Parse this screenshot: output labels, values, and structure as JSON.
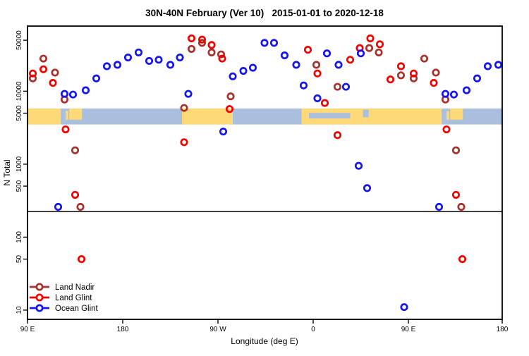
{
  "title": "30N-40N February (Ver 10)   2015-01-01 to 2020-12-18",
  "chart_data": {
    "type": "scatter",
    "title": "30N-40N February (Ver 10)   2015-01-01 to 2020-12-18",
    "xlabel": "Longitude (deg E)",
    "ylabel": "N Total",
    "grid": false,
    "legend_position": "bottom-left",
    "x_axis": {
      "start_deg_east": 90,
      "span_deg": 450,
      "wraps_past_180": true,
      "ticks": [
        {
          "deg": 90,
          "label": "90 E"
        },
        {
          "deg": 180,
          "label": "180"
        },
        {
          "deg": 270,
          "label": "90 W"
        },
        {
          "deg": 360,
          "label": "0"
        },
        {
          "deg": 450,
          "label": "90 E"
        },
        {
          "deg": 540,
          "label": "180"
        }
      ]
    },
    "y_axis": {
      "scale": "log",
      "min": 10,
      "max": 60000,
      "ticks": [
        50000,
        10000,
        5000,
        1000,
        500,
        100,
        50,
        10
      ],
      "tick_labels": [
        "50000",
        "10000",
        "5000",
        "1000",
        "500",
        "100",
        "50",
        "10"
      ],
      "label_rotation_deg": -90
    },
    "threshold_line_n": 225,
    "map_strip": {
      "description": "coastline band 30N-40N drawn across plot",
      "n_range": [
        3500,
        5800
      ],
      "sea_color": "#A9BFDD",
      "land_color": "#FED977",
      "land_segments": [
        {
          "from": 90,
          "to": 121.5,
          "top": 0,
          "bottom": 1
        },
        {
          "from": 126,
          "to": 128.5,
          "top": 0.15,
          "bottom": 0.7
        },
        {
          "from": 129.5,
          "to": 141.5,
          "top": 0,
          "bottom": 0.7
        },
        {
          "from": 236,
          "to": 284,
          "top": 0,
          "bottom": 1
        },
        {
          "from": 349,
          "to": 481.5,
          "top": 0,
          "bottom": 1
        },
        {
          "from": 486,
          "to": 488.5,
          "top": 0.15,
          "bottom": 0.7
        },
        {
          "from": 489.5,
          "to": 501.5,
          "top": 0,
          "bottom": 0.7
        }
      ],
      "sea_overlays": [
        {
          "from": 356,
          "to": 395,
          "top": 0.28,
          "bottom": 0.62
        },
        {
          "from": 407,
          "to": 412.5,
          "top": 0.08,
          "bottom": 0.55
        }
      ]
    },
    "series": [
      {
        "name": "Land Nadir",
        "color": "#A5322D",
        "points": [
          [
            95,
            15000
          ],
          [
            105,
            28000
          ],
          [
            116,
            18000
          ],
          [
            125,
            7700
          ],
          [
            135,
            1550
          ],
          [
            140,
            260
          ],
          [
            238,
            5900
          ],
          [
            245,
            38000
          ],
          [
            255,
            46000
          ],
          [
            264,
            34000
          ],
          [
            273,
            32000
          ],
          [
            282,
            8500
          ],
          [
            363,
            23000
          ],
          [
            383,
            11500
          ],
          [
            413,
            39000
          ],
          [
            422,
            34000
          ],
          [
            443,
            16500
          ],
          [
            455,
            15000
          ],
          [
            465,
            28000
          ],
          [
            476,
            18000
          ],
          [
            485,
            7700
          ],
          [
            495,
            1550
          ],
          [
            500,
            260
          ]
        ]
      },
      {
        "name": "Land Glint",
        "color": "#F50000",
        "points": [
          [
            95,
            17500
          ],
          [
            105,
            20000
          ],
          [
            114,
            13000
          ],
          [
            126,
            3000
          ],
          [
            135,
            380
          ],
          [
            141,
            50
          ],
          [
            238,
            2000
          ],
          [
            245,
            53000
          ],
          [
            255,
            51000
          ],
          [
            264,
            43000
          ],
          [
            274,
            28000
          ],
          [
            281,
            5700
          ],
          [
            355,
            37000
          ],
          [
            364,
            17500
          ],
          [
            371,
            6900
          ],
          [
            383,
            2500
          ],
          [
            395,
            27000
          ],
          [
            404,
            39000
          ],
          [
            414,
            53000
          ],
          [
            423,
            44000
          ],
          [
            433,
            14500
          ],
          [
            443,
            22000
          ],
          [
            455,
            17500
          ],
          [
            474,
            13000
          ],
          [
            486,
            3000
          ],
          [
            495,
            380
          ],
          [
            501,
            50
          ]
        ]
      },
      {
        "name": "Ocean Glint",
        "color": "#1515EF",
        "points": [
          [
            119,
            260
          ],
          [
            125,
            9200
          ],
          [
            133,
            9000
          ],
          [
            145,
            10300
          ],
          [
            155,
            15000
          ],
          [
            165,
            22000
          ],
          [
            175,
            23000
          ],
          [
            185,
            29000
          ],
          [
            195,
            34000
          ],
          [
            205,
            26000
          ],
          [
            214,
            27000
          ],
          [
            225,
            23000
          ],
          [
            234,
            29000
          ],
          [
            242,
            9200
          ],
          [
            275,
            2800
          ],
          [
            284,
            16000
          ],
          [
            294,
            19000
          ],
          [
            303,
            21000
          ],
          [
            314,
            46000
          ],
          [
            323,
            46000
          ],
          [
            333,
            31000
          ],
          [
            344,
            23000
          ],
          [
            351,
            12000
          ],
          [
            364,
            8000
          ],
          [
            373,
            33000
          ],
          [
            384,
            23000
          ],
          [
            391,
            11500
          ],
          [
            403,
            950
          ],
          [
            405,
            33000
          ],
          [
            411,
            470
          ],
          [
            446,
            11
          ],
          [
            479,
            260
          ],
          [
            485,
            9200
          ],
          [
            493,
            9000
          ],
          [
            505,
            10300
          ],
          [
            515,
            15000
          ],
          [
            525,
            22000
          ],
          [
            535,
            23000
          ]
        ]
      }
    ]
  }
}
